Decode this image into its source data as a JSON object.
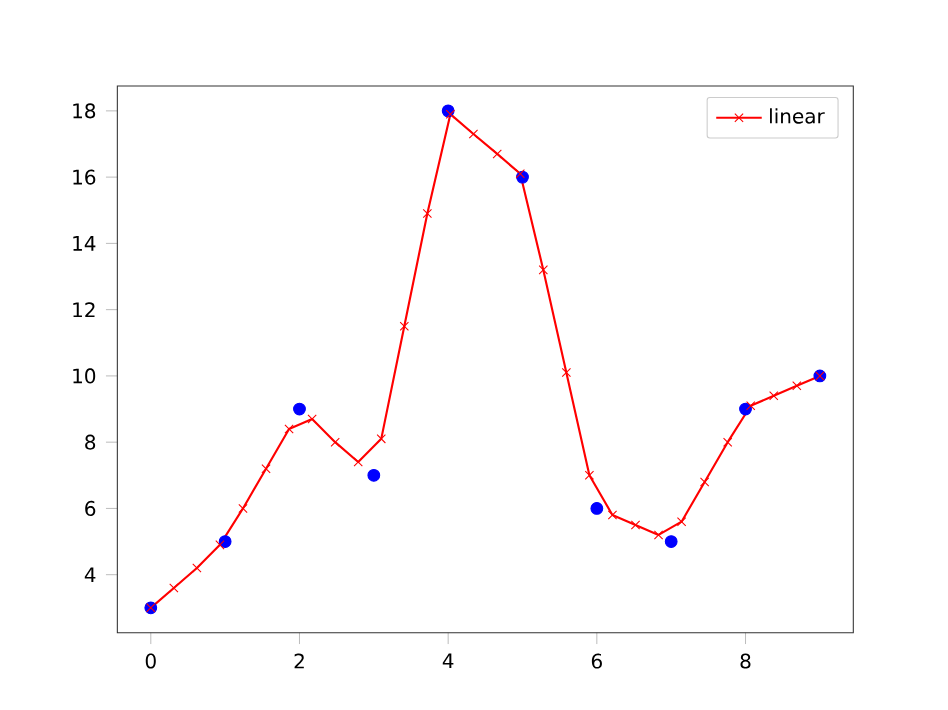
{
  "chart_data": {
    "type": "line",
    "xlim": [
      -0.45,
      9.45
    ],
    "ylim": [
      2.25,
      18.75
    ],
    "xticks": [
      0,
      2,
      4,
      6,
      8
    ],
    "yticks": [
      4,
      6,
      8,
      10,
      12,
      14,
      16,
      18
    ],
    "legend": "top right",
    "grid": false,
    "series": [
      {
        "type": "scatter",
        "color": "#0000ff",
        "marker": "circle",
        "x": [
          0,
          1,
          2,
          3,
          4,
          5,
          6,
          7,
          8,
          9
        ],
        "values": [
          3,
          5,
          9,
          7,
          18,
          16,
          6,
          5,
          9,
          10
        ]
      },
      {
        "name": "linear",
        "color": "#ff0000",
        "marker": "cross",
        "line_style": "solid",
        "x": [
          0,
          0.31,
          0.62,
          0.93,
          1.24,
          1.55,
          1.86,
          2.17,
          2.48,
          2.79,
          3.1,
          3.41,
          3.72,
          4.03,
          4.34,
          4.66,
          4.97,
          5.28,
          5.59,
          5.9,
          6.21,
          6.52,
          6.83,
          7.14,
          7.45,
          7.76,
          8.07,
          8.38,
          8.69,
          9
        ],
        "values": [
          3,
          3.6,
          4.2,
          4.9,
          6.0,
          7.2,
          8.4,
          8.7,
          8.0,
          7.4,
          8.1,
          11.5,
          14.9,
          17.9,
          17.3,
          16.7,
          16.1,
          13.2,
          10.1,
          7.0,
          5.8,
          5.5,
          5.2,
          5.6,
          6.8,
          8.0,
          9.1,
          9.4,
          9.7,
          10
        ]
      }
    ]
  }
}
